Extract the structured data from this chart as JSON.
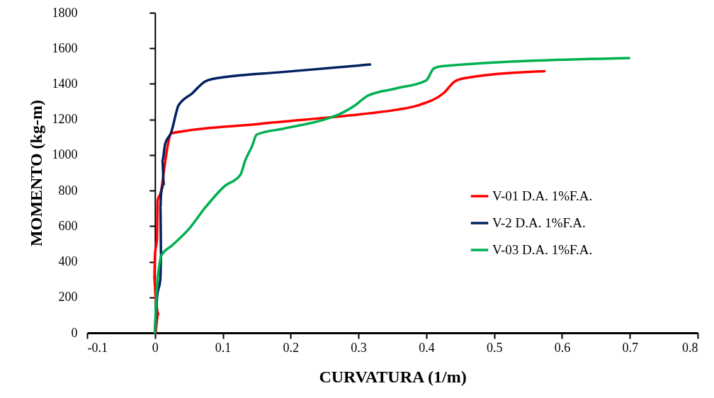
{
  "chart_data": {
    "type": "line",
    "xlabel": "CURVATURA (1/m)",
    "ylabel": "MOMENTO (kg-m)",
    "xlim": [
      -0.1,
      0.8
    ],
    "ylim": [
      0,
      1800
    ],
    "xticks": [
      -0.1,
      0,
      0.1,
      0.2,
      0.3,
      0.4,
      0.5,
      0.6,
      0.7,
      0.8
    ],
    "yticks": [
      0,
      200,
      400,
      600,
      800,
      1000,
      1200,
      1400,
      1600,
      1800
    ],
    "legend": "right",
    "series": [
      {
        "name": "V-01 D.A. 1%F.A.",
        "color": "#ff0000",
        "x": [
          0.001,
          0.005,
          0.001,
          -0.001,
          0,
          0.003,
          0.004,
          0.009,
          0.013,
          0.018,
          0.024,
          0.154,
          0.317,
          0.355,
          0.39,
          0.426,
          0.442,
          0.459,
          0.574
        ],
        "values": [
          0,
          107,
          199,
          306,
          438,
          531,
          744,
          796,
          904,
          1035,
          1122,
          1175,
          1235,
          1254,
          1282,
          1350,
          1414,
          1434,
          1471
        ]
      },
      {
        "name": "V-2 D.A. 1%F.A.",
        "color": "#002060",
        "x": [
          0,
          0.003,
          0.008,
          0.009,
          0.008,
          0.009,
          0.013,
          0.011,
          0.015,
          0.024,
          0.032,
          0.034,
          0.055,
          0.074,
          0.084,
          0.189,
          0.317
        ],
        "values": [
          0,
          199,
          306,
          438,
          704,
          783,
          836,
          969,
          1062,
          1128,
          1248,
          1274,
          1347,
          1414,
          1427,
          1467,
          1509
        ]
      },
      {
        "name": "V-03 D.A. 1%F.A.",
        "color": "#00b050",
        "x": [
          0,
          0.002,
          0.01,
          0.025,
          0.05,
          0.074,
          0.102,
          0.126,
          0.133,
          0.143,
          0.15,
          0.189,
          0.251,
          0.275,
          0.293,
          0.314,
          0.355,
          0.4,
          0.411,
          0.425,
          0.699
        ],
        "values": [
          0,
          199,
          438,
          491,
          584,
          704,
          823,
          889,
          969,
          1049,
          1115,
          1148,
          1201,
          1235,
          1274,
          1334,
          1374,
          1420,
          1487,
          1500,
          1545
        ]
      }
    ]
  }
}
